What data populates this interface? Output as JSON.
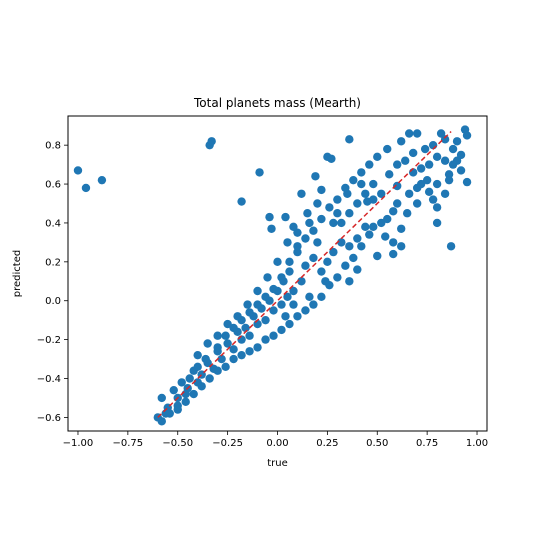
{
  "chart_data": {
    "type": "scatter",
    "title": "Total planets mass (Mearth)",
    "xlabel": "true",
    "ylabel": "predicted",
    "xlim": [
      -1.05,
      1.05
    ],
    "ylim": [
      -0.67,
      0.95
    ],
    "xticks": [
      -1.0,
      -0.75,
      -0.5,
      -0.25,
      0.0,
      0.25,
      0.5,
      0.75,
      1.0
    ],
    "xtick_labels": [
      "−1.00",
      "−0.75",
      "−0.50",
      "−0.25",
      "0.00",
      "0.25",
      "0.50",
      "0.75",
      "1.00"
    ],
    "yticks": [
      -0.6,
      -0.4,
      -0.2,
      0.0,
      0.2,
      0.4,
      0.6,
      0.8
    ],
    "ytick_labels": [
      "−0.6",
      "−0.4",
      "−0.2",
      "0.0",
      "0.2",
      "0.4",
      "0.6",
      "0.8"
    ],
    "grid": false,
    "point_color": "#1f77b4",
    "reference_line": {
      "x": [
        -0.6,
        0.87
      ],
      "y": [
        -0.6,
        0.87
      ],
      "color": "#d62728",
      "style": "dashed"
    },
    "series": [
      {
        "values": [
          [
            -1.0,
            0.67
          ],
          [
            -0.96,
            0.58
          ],
          [
            -0.88,
            0.62
          ],
          [
            -0.34,
            0.8
          ],
          [
            -0.33,
            0.82
          ],
          [
            -0.09,
            0.66
          ],
          [
            -0.18,
            0.51
          ],
          [
            -0.04,
            0.43
          ],
          [
            -0.03,
            0.37
          ],
          [
            0.04,
            0.43
          ],
          [
            0.36,
            0.83
          ],
          [
            0.19,
            0.64
          ],
          [
            0.22,
            0.57
          ],
          [
            0.25,
            0.74
          ],
          [
            0.27,
            0.73
          ],
          [
            0.35,
            0.55
          ],
          [
            0.42,
            0.6
          ],
          [
            0.45,
            0.51
          ],
          [
            0.48,
            0.38
          ],
          [
            0.5,
            0.23
          ],
          [
            0.54,
            0.33
          ],
          [
            0.58,
            0.24
          ],
          [
            0.6,
            0.59
          ],
          [
            0.66,
            0.86
          ],
          [
            0.7,
            0.86
          ],
          [
            0.74,
            0.78
          ],
          [
            0.78,
            0.8
          ],
          [
            0.82,
            0.86
          ],
          [
            0.84,
            0.83
          ],
          [
            0.86,
            0.65
          ],
          [
            0.87,
            0.28
          ],
          [
            0.9,
            0.72
          ],
          [
            0.92,
            0.67
          ],
          [
            0.94,
            0.88
          ],
          [
            0.95,
            0.85
          ],
          [
            0.95,
            0.61
          ],
          [
            0.78,
            0.52
          ],
          [
            0.8,
            0.4
          ],
          [
            0.8,
            0.6
          ],
          [
            0.7,
            0.58
          ],
          [
            0.65,
            0.45
          ],
          [
            0.62,
            0.37
          ],
          [
            0.6,
            0.5
          ],
          [
            0.55,
            0.42
          ],
          [
            0.52,
            0.55
          ],
          [
            0.48,
            0.52
          ],
          [
            0.44,
            0.38
          ],
          [
            0.4,
            0.32
          ],
          [
            0.36,
            0.28
          ],
          [
            0.32,
            0.3
          ],
          [
            0.3,
            0.45
          ],
          [
            0.28,
            0.4
          ],
          [
            0.25,
            0.2
          ],
          [
            0.22,
            0.15
          ],
          [
            0.2,
            0.3
          ],
          [
            0.18,
            0.22
          ],
          [
            0.16,
            0.4
          ],
          [
            0.14,
            0.18
          ],
          [
            0.12,
            0.1
          ],
          [
            0.1,
            0.25
          ],
          [
            0.08,
            0.05
          ],
          [
            0.06,
            0.15
          ],
          [
            0.05,
            0.02
          ],
          [
            0.03,
            0.1
          ],
          [
            0.02,
            -0.02
          ],
          [
            0.0,
            0.05
          ],
          [
            -0.02,
            -0.05
          ],
          [
            -0.04,
            0.0
          ],
          [
            -0.06,
            -0.1
          ],
          [
            -0.08,
            -0.04
          ],
          [
            -0.1,
            -0.12
          ],
          [
            -0.12,
            -0.08
          ],
          [
            -0.14,
            -0.18
          ],
          [
            -0.16,
            -0.14
          ],
          [
            -0.18,
            -0.2
          ],
          [
            -0.2,
            -0.16
          ],
          [
            -0.22,
            -0.25
          ],
          [
            -0.25,
            -0.22
          ],
          [
            -0.28,
            -0.3
          ],
          [
            -0.3,
            -0.26
          ],
          [
            -0.32,
            -0.35
          ],
          [
            -0.35,
            -0.32
          ],
          [
            -0.38,
            -0.38
          ],
          [
            -0.4,
            -0.42
          ],
          [
            -0.42,
            -0.36
          ],
          [
            -0.45,
            -0.45
          ],
          [
            -0.48,
            -0.42
          ],
          [
            -0.5,
            -0.5
          ],
          [
            -0.52,
            -0.46
          ],
          [
            -0.55,
            -0.55
          ],
          [
            -0.58,
            -0.5
          ],
          [
            -0.6,
            -0.6
          ],
          [
            -0.56,
            -0.58
          ],
          [
            -0.5,
            -0.54
          ],
          [
            -0.46,
            -0.48
          ],
          [
            -0.44,
            -0.4
          ],
          [
            -0.4,
            -0.34
          ],
          [
            -0.36,
            -0.3
          ],
          [
            -0.3,
            -0.24
          ],
          [
            -0.26,
            -0.18
          ],
          [
            -0.22,
            -0.14
          ],
          [
            -0.18,
            -0.1
          ],
          [
            -0.14,
            -0.06
          ],
          [
            -0.1,
            -0.02
          ],
          [
            -0.06,
            0.02
          ],
          [
            -0.02,
            0.06
          ],
          [
            0.02,
            0.12
          ],
          [
            0.06,
            0.2
          ],
          [
            0.1,
            0.28
          ],
          [
            0.14,
            0.32
          ],
          [
            0.18,
            0.36
          ],
          [
            0.22,
            0.42
          ],
          [
            0.26,
            0.48
          ],
          [
            0.3,
            0.52
          ],
          [
            0.34,
            0.58
          ],
          [
            0.38,
            0.62
          ],
          [
            0.42,
            0.66
          ],
          [
            0.46,
            0.7
          ],
          [
            0.5,
            0.74
          ],
          [
            0.55,
            0.78
          ],
          [
            0.62,
            0.82
          ],
          [
            0.68,
            0.76
          ],
          [
            0.72,
            0.68
          ],
          [
            0.76,
            0.7
          ],
          [
            0.8,
            0.74
          ],
          [
            0.84,
            0.72
          ],
          [
            0.88,
            0.78
          ],
          [
            0.9,
            0.82
          ],
          [
            0.75,
            0.62
          ],
          [
            0.7,
            0.5
          ],
          [
            0.66,
            0.55
          ],
          [
            0.58,
            0.46
          ],
          [
            0.52,
            0.4
          ],
          [
            0.46,
            0.34
          ],
          [
            0.42,
            0.28
          ],
          [
            0.38,
            0.22
          ],
          [
            0.34,
            0.18
          ],
          [
            0.3,
            0.12
          ],
          [
            0.26,
            0.08
          ],
          [
            0.22,
            0.02
          ],
          [
            0.18,
            -0.02
          ],
          [
            0.14,
            -0.05
          ],
          [
            0.1,
            -0.08
          ],
          [
            0.06,
            -0.12
          ],
          [
            0.02,
            -0.15
          ],
          [
            -0.02,
            -0.18
          ],
          [
            -0.06,
            -0.2
          ],
          [
            -0.1,
            -0.24
          ],
          [
            -0.14,
            -0.26
          ],
          [
            -0.18,
            -0.28
          ],
          [
            -0.22,
            -0.3
          ],
          [
            -0.26,
            -0.34
          ],
          [
            -0.3,
            -0.36
          ],
          [
            -0.34,
            -0.4
          ],
          [
            -0.38,
            -0.44
          ],
          [
            -0.42,
            -0.48
          ],
          [
            -0.46,
            -0.52
          ],
          [
            -0.5,
            -0.56
          ],
          [
            -0.54,
            -0.58
          ],
          [
            -0.58,
            -0.62
          ],
          [
            0.0,
            0.2
          ],
          [
            0.05,
            0.3
          ],
          [
            0.1,
            0.35
          ],
          [
            0.15,
            0.45
          ],
          [
            0.2,
            0.5
          ],
          [
            0.12,
            0.55
          ],
          [
            0.08,
            0.38
          ],
          [
            -0.05,
            0.12
          ],
          [
            -0.1,
            0.05
          ],
          [
            -0.15,
            -0.02
          ],
          [
            -0.2,
            -0.08
          ],
          [
            -0.25,
            -0.12
          ],
          [
            -0.3,
            -0.18
          ],
          [
            -0.35,
            -0.22
          ],
          [
            -0.4,
            -0.28
          ],
          [
            0.24,
            0.1
          ],
          [
            0.28,
            0.25
          ],
          [
            0.32,
            0.4
          ],
          [
            0.36,
            0.45
          ],
          [
            0.4,
            0.5
          ],
          [
            0.44,
            0.55
          ],
          [
            0.48,
            0.6
          ],
          [
            0.56,
            0.65
          ],
          [
            0.6,
            0.7
          ],
          [
            0.64,
            0.72
          ],
          [
            0.68,
            0.66
          ],
          [
            0.72,
            0.6
          ],
          [
            0.76,
            0.56
          ],
          [
            0.8,
            0.48
          ],
          [
            0.84,
            0.55
          ],
          [
            0.86,
            0.62
          ],
          [
            0.88,
            0.7
          ],
          [
            0.92,
            0.75
          ],
          [
            0.58,
            0.3
          ],
          [
            0.62,
            0.28
          ],
          [
            0.4,
            0.16
          ],
          [
            0.36,
            0.1
          ],
          [
            0.16,
            0.02
          ],
          [
            0.08,
            -0.02
          ],
          [
            0.04,
            -0.08
          ]
        ]
      }
    ]
  }
}
